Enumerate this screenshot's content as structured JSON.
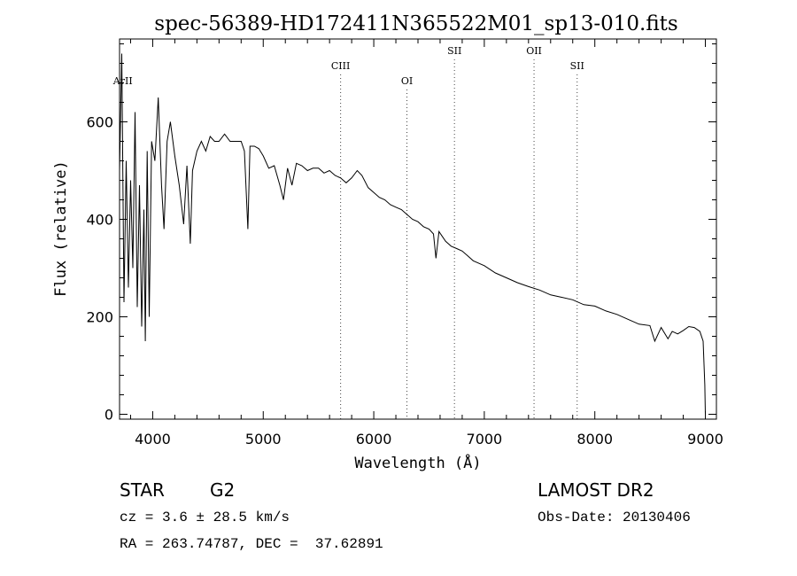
{
  "chart_data": {
    "type": "line",
    "title": "spec-56389-HD172411N365522M01_sp13-010.fits",
    "xlabel": "Wavelength (Å)",
    "ylabel": "Flux (relative)",
    "xlim": [
      3700,
      9100
    ],
    "ylim": [
      -10,
      770
    ],
    "xticks": [
      4000,
      5000,
      6000,
      7000,
      8000,
      9000
    ],
    "yticks": [
      0,
      200,
      400,
      600
    ],
    "grid": false,
    "series": [
      {
        "x": [
          3700,
          3720,
          3740,
          3760,
          3780,
          3800,
          3820,
          3840,
          3860,
          3880,
          3900,
          3920,
          3933,
          3950,
          3968,
          3990,
          4020,
          4050,
          4080,
          4102,
          4130,
          4160,
          4200,
          4240,
          4280,
          4310,
          4340,
          4360,
          4400,
          4440,
          4480,
          4520,
          4560,
          4600,
          4650,
          4700,
          4750,
          4800,
          4830,
          4861,
          4880,
          4920,
          4960,
          5000,
          5050,
          5100,
          5150,
          5183,
          5220,
          5260,
          5300,
          5350,
          5400,
          5450,
          5500,
          5550,
          5600,
          5650,
          5700,
          5750,
          5800,
          5850,
          5893,
          5950,
          6000,
          6050,
          6100,
          6150,
          6200,
          6250,
          6300,
          6350,
          6400,
          6450,
          6500,
          6540,
          6563,
          6590,
          6650,
          6700,
          6750,
          6800,
          6850,
          6900,
          7000,
          7100,
          7200,
          7300,
          7400,
          7500,
          7600,
          7700,
          7800,
          7900,
          8000,
          8100,
          8200,
          8300,
          8400,
          8498,
          8542,
          8600,
          8662,
          8700,
          8750,
          8800,
          8850,
          8900,
          8950,
          8980,
          8995,
          9000
        ],
        "y": [
          500,
          740,
          230,
          520,
          260,
          480,
          300,
          620,
          220,
          470,
          180,
          420,
          150,
          540,
          200,
          560,
          520,
          650,
          470,
          380,
          560,
          600,
          530,
          470,
          390,
          510,
          350,
          500,
          540,
          560,
          540,
          570,
          560,
          560,
          575,
          560,
          560,
          560,
          540,
          380,
          550,
          550,
          545,
          530,
          505,
          510,
          470,
          440,
          505,
          470,
          515,
          510,
          500,
          505,
          505,
          495,
          500,
          490,
          485,
          475,
          485,
          500,
          490,
          465,
          455,
          445,
          440,
          430,
          425,
          420,
          410,
          400,
          395,
          385,
          380,
          370,
          320,
          375,
          355,
          345,
          340,
          335,
          325,
          315,
          305,
          290,
          280,
          270,
          262,
          255,
          245,
          240,
          235,
          225,
          222,
          212,
          205,
          195,
          185,
          182,
          150,
          178,
          155,
          170,
          165,
          172,
          180,
          178,
          170,
          150,
          60,
          0
        ]
      }
    ],
    "line_ids": [
      {
        "label": "ArII",
        "x": 3730
      },
      {
        "label": "CIII",
        "x": 5700
      },
      {
        "label": "OI",
        "x": 6300
      },
      {
        "label": "SII",
        "x": 6730
      },
      {
        "label": "OII",
        "x": 7450
      },
      {
        "label": "SII",
        "x": 7840
      }
    ]
  },
  "info": {
    "object_type": "STAR",
    "subclass": "G2",
    "survey": "LAMOST DR2",
    "cz": "cz = 3.6 ± 28.5 km/s",
    "obs_date": "Obs-Date: 20130406",
    "coords": "RA = 263.74787, DEC =  37.62891"
  }
}
